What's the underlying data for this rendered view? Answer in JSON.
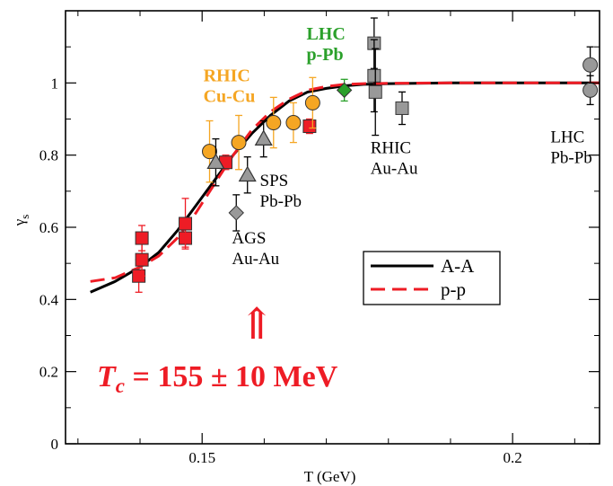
{
  "chart_data": {
    "type": "scatter",
    "xlabel": "T (GeV)",
    "ylabel": "γs",
    "xlim": [
      0.128,
      0.214
    ],
    "ylim": [
      0,
      1.2
    ],
    "x_ticks": [
      0.15,
      0.2
    ],
    "x_tick_labels": [
      "0.15",
      "0.2"
    ],
    "y_ticks": [
      0,
      0.2,
      0.4,
      0.6,
      0.8,
      1.0
    ],
    "y_tick_labels": [
      "0",
      "0.2",
      "0.4",
      "0.6",
      "0.8",
      "1"
    ],
    "legend_position": "center-right",
    "curves": [
      {
        "name": "A-A",
        "color": "#000000",
        "style": "solid",
        "x": [
          0.132,
          0.136,
          0.14,
          0.143,
          0.146,
          0.149,
          0.152,
          0.155,
          0.158,
          0.161,
          0.164,
          0.167,
          0.17,
          0.173,
          0.176,
          0.18,
          0.19,
          0.2,
          0.214
        ],
        "y": [
          0.42,
          0.45,
          0.49,
          0.53,
          0.59,
          0.66,
          0.73,
          0.8,
          0.86,
          0.91,
          0.95,
          0.975,
          0.985,
          0.992,
          0.996,
          0.998,
          1.0,
          1.0,
          1.0
        ]
      },
      {
        "name": "p-p",
        "color": "#ee1c25",
        "style": "dashed",
        "x": [
          0.132,
          0.136,
          0.14,
          0.143,
          0.146,
          0.149,
          0.152,
          0.155,
          0.158,
          0.161,
          0.164,
          0.167,
          0.17,
          0.173,
          0.176,
          0.18,
          0.19,
          0.2,
          0.214
        ],
        "y": [
          0.45,
          0.46,
          0.49,
          0.52,
          0.57,
          0.64,
          0.72,
          0.8,
          0.87,
          0.92,
          0.955,
          0.98,
          0.99,
          0.996,
          0.998,
          0.999,
          1.0,
          1.0,
          1.0
        ]
      }
    ],
    "points": [
      {
        "group": "p-p",
        "marker": "square",
        "color": "#ee1c25",
        "x": 0.1398,
        "y": 0.465,
        "err": 0.045
      },
      {
        "group": "p-p",
        "marker": "square",
        "color": "#ee1c25",
        "x": 0.1403,
        "y": 0.51,
        "err": 0.045
      },
      {
        "group": "p-p",
        "marker": "square",
        "color": "#ee1c25",
        "x": 0.1403,
        "y": 0.57,
        "err": 0.035
      },
      {
        "group": "p-p",
        "marker": "square",
        "color": "#ee1c25",
        "x": 0.1473,
        "y": 0.57,
        "err": 0.025
      },
      {
        "group": "p-p",
        "marker": "square",
        "color": "#ee1c25",
        "x": 0.1473,
        "y": 0.61,
        "err": 0.07
      },
      {
        "group": "p-p",
        "marker": "square",
        "color": "#ee1c25",
        "x": 0.1538,
        "y": 0.78,
        "err": 0.02
      },
      {
        "group": "p-p",
        "marker": "square",
        "color": "#ee1c25",
        "x": 0.1673,
        "y": 0.88,
        "err": 0.02
      },
      {
        "group": "RHIC Cu-Cu",
        "marker": "circle",
        "color": "#f5a623",
        "x": 0.1512,
        "y": 0.81,
        "err": 0.085
      },
      {
        "group": "RHIC Cu-Cu",
        "marker": "circle",
        "color": "#f5a623",
        "x": 0.1559,
        "y": 0.835,
        "err": 0.075
      },
      {
        "group": "RHIC Cu-Cu",
        "marker": "circle",
        "color": "#f5a623",
        "x": 0.1615,
        "y": 0.89,
        "err": 0.07
      },
      {
        "group": "RHIC Cu-Cu",
        "marker": "circle",
        "color": "#f5a623",
        "x": 0.1647,
        "y": 0.89,
        "err": 0.055
      },
      {
        "group": "RHIC Cu-Cu",
        "marker": "circle",
        "color": "#f5a623",
        "x": 0.1678,
        "y": 0.945,
        "err": 0.07
      },
      {
        "group": "SPS Pb-Pb",
        "marker": "triangle",
        "color": "#999999",
        "x": 0.1522,
        "y": 0.78,
        "err": 0.065
      },
      {
        "group": "SPS Pb-Pb",
        "marker": "triangle",
        "color": "#999999",
        "x": 0.1573,
        "y": 0.745,
        "err": 0.05
      },
      {
        "group": "SPS Pb-Pb",
        "marker": "triangle",
        "color": "#999999",
        "x": 0.1599,
        "y": 0.845,
        "err": 0.05
      },
      {
        "group": "AGS Au-Au",
        "marker": "diamond",
        "color": "#999999",
        "x": 0.1555,
        "y": 0.64,
        "err": 0.05
      },
      {
        "group": "LHC p-Pb",
        "marker": "diamond",
        "color": "#2aa02a",
        "x": 0.1729,
        "y": 0.98,
        "err": 0.03
      },
      {
        "group": "RHIC Au-Au",
        "marker": "square",
        "color": "#999999",
        "x": 0.1777,
        "y": 1.11,
        "err": 0.07
      },
      {
        "group": "RHIC Au-Au",
        "marker": "square",
        "color": "#999999",
        "x": 0.1777,
        "y": 1.02,
        "err": 0.1
      },
      {
        "group": "RHIC Au-Au",
        "marker": "square",
        "color": "#999999",
        "x": 0.1779,
        "y": 0.975,
        "err": 0.12
      },
      {
        "group": "RHIC Au-Au",
        "marker": "square",
        "color": "#999999",
        "x": 0.1822,
        "y": 0.93,
        "err": 0.045
      },
      {
        "group": "LHC Pb-Pb",
        "marker": "circle",
        "color": "#999999",
        "x": 0.2125,
        "y": 1.05,
        "err": 0.05
      },
      {
        "group": "LHC Pb-Pb",
        "marker": "circle",
        "color": "#999999",
        "x": 0.2125,
        "y": 0.98,
        "err": 0.04
      }
    ],
    "annotations": [
      {
        "lines": [
          "RHIC",
          "Cu-Cu"
        ],
        "color": "#f5a623",
        "bold": true,
        "x": 0.1502,
        "y": 1.005
      },
      {
        "lines": [
          "LHC",
          "p-Pb"
        ],
        "color": "#2aa02a",
        "bold": true,
        "x": 0.1668,
        "y": 1.12
      },
      {
        "lines": [
          "RHIC",
          "Au-Au"
        ],
        "color": "#000000",
        "bold": false,
        "x": 0.1771,
        "y": 0.805
      },
      {
        "lines": [
          "SPS",
          "Pb-Pb"
        ],
        "color": "#000000",
        "bold": false,
        "x": 0.1593,
        "y": 0.715
      },
      {
        "lines": [
          "AGS",
          "Au-Au"
        ],
        "color": "#000000",
        "bold": false,
        "x": 0.1548,
        "y": 0.555
      },
      {
        "lines": [
          "LHC",
          "Pb-Pb"
        ],
        "color": "#000000",
        "bold": false,
        "x": 0.2061,
        "y": 0.835
      }
    ],
    "legend": [
      {
        "label": "A-A",
        "color": "#000000",
        "style": "solid"
      },
      {
        "label": "p-p",
        "color": "#ee1c25",
        "style": "dashed"
      }
    ],
    "arrow_symbol": "⇑",
    "tc_label": {
      "T": "T",
      "sub": "c",
      "rest": " = 155 ± 10 MeV",
      "color": "#ee1c25"
    }
  }
}
